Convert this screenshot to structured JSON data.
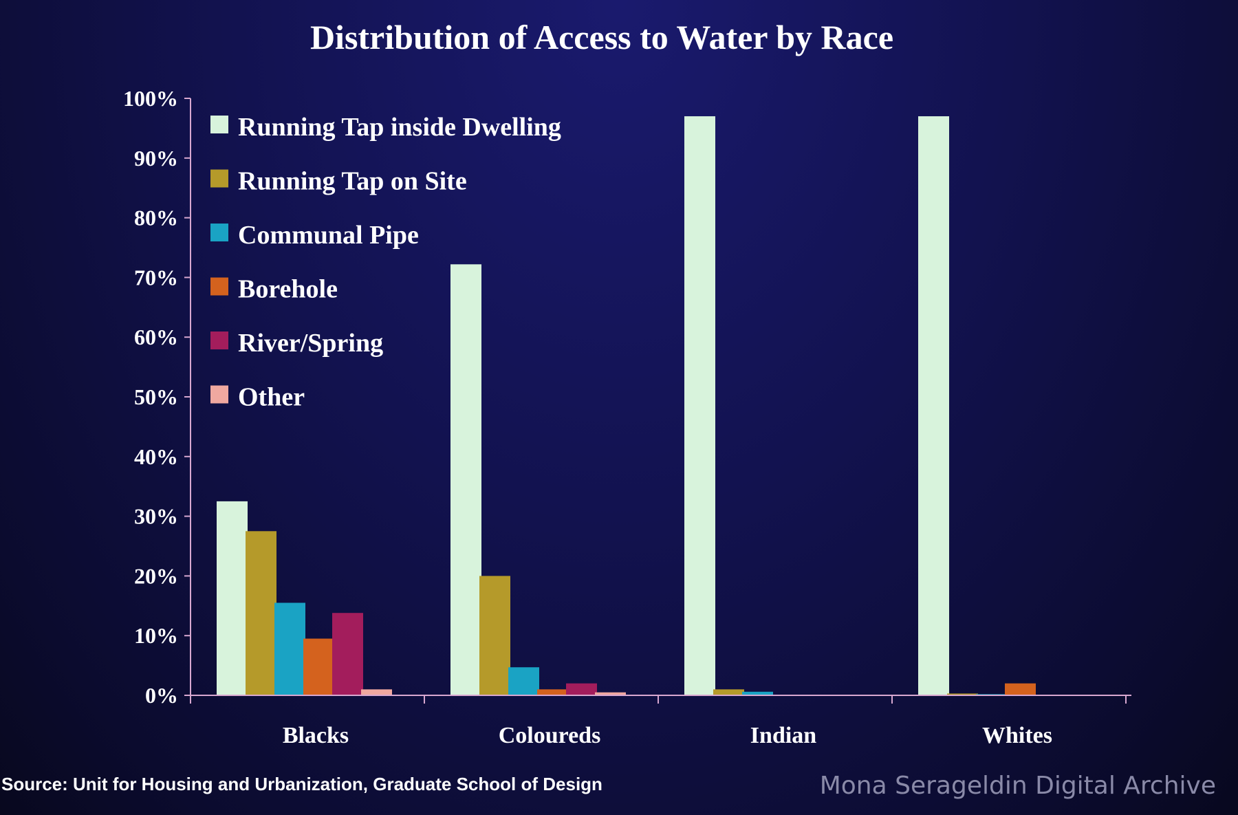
{
  "chart_data": {
    "type": "bar",
    "title": "Distribution of Access to Water by Race",
    "categories": [
      "Blacks",
      "Coloureds",
      "Indian",
      "Whites"
    ],
    "series": [
      {
        "name": "Running Tap inside Dwelling",
        "color": "#d8f3dc",
        "values": [
          32.5,
          72.2,
          97,
          97
        ]
      },
      {
        "name": "Running Tap on Site",
        "color": "#b59a2a",
        "values": [
          27.5,
          20,
          1,
          0.3
        ]
      },
      {
        "name": "Communal Pipe",
        "color": "#1aa3c4",
        "values": [
          15.5,
          4.7,
          0.6,
          0.2
        ]
      },
      {
        "name": "Borehole",
        "color": "#d4621e",
        "values": [
          9.5,
          1,
          0.1,
          2
        ]
      },
      {
        "name": "River/Spring",
        "color": "#a31d5c",
        "values": [
          13.8,
          2,
          0.1,
          0
        ]
      },
      {
        "name": "Other",
        "color": "#f0a8a0",
        "values": [
          1,
          0.5,
          0.1,
          0
        ]
      }
    ],
    "ylim": [
      0,
      100
    ],
    "yticks": [
      "0%",
      "10%",
      "20%",
      "30%",
      "40%",
      "50%",
      "60%",
      "70%",
      "80%",
      "90%",
      "100%"
    ],
    "legend_position": "top-left",
    "grid": false,
    "axis_color": "#d8a8d0"
  },
  "source": "Source: Unit for Housing and Urbanization, Graduate School of Design",
  "watermark": "Mona Serageldin Digital Archive"
}
